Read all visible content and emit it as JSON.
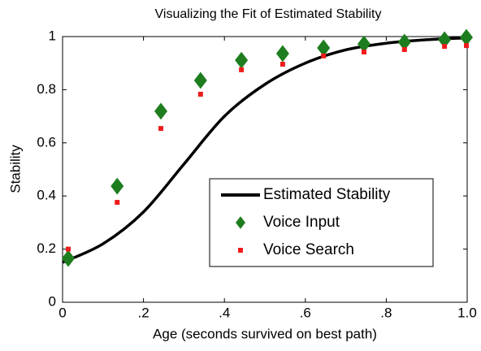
{
  "chart_data": {
    "type": "line",
    "title": "Visualizing the Fit of Estimated Stability",
    "xlabel": "Age (seconds survived on best path)",
    "ylabel": "Stability",
    "xlim": [
      0,
      1
    ],
    "ylim": [
      0,
      1
    ],
    "xticks": [
      0,
      {
        "value": 0.2,
        "label": ".2"
      },
      {
        "value": 0.4,
        "label": ".4"
      },
      {
        "value": 0.6,
        "label": ".6"
      },
      {
        "value": 0.8,
        "label": ".8"
      },
      {
        "value": 1,
        "label": "1.0"
      }
    ],
    "yticks": [
      0,
      0.2,
      0.4,
      0.6,
      0.8,
      1
    ],
    "legend": "lower right",
    "series": [
      {
        "name": "Estimated Stability",
        "color": "#000000",
        "marker": "line",
        "x": [
          0,
          0.1,
          0.2,
          0.3,
          0.4,
          0.5,
          0.6,
          0.7,
          0.8,
          0.9,
          1.0
        ],
        "values": [
          0.15,
          0.22,
          0.34,
          0.52,
          0.7,
          0.82,
          0.9,
          0.95,
          0.975,
          0.988,
          0.995
        ]
      },
      {
        "name": "Voice Input",
        "color": "#1e7d1e",
        "marker": "diamond",
        "x": [
          0.014,
          0.135,
          0.243,
          0.341,
          0.442,
          0.544,
          0.645,
          0.745,
          0.845,
          0.944,
          0.998
        ],
        "values": [
          0.165,
          0.437,
          0.719,
          0.835,
          0.911,
          0.936,
          0.957,
          0.972,
          0.979,
          0.988,
          0.997
        ]
      },
      {
        "name": "Voice Search",
        "color": "#ee1c1c",
        "marker": "square",
        "x": [
          0.014,
          0.135,
          0.243,
          0.341,
          0.442,
          0.544,
          0.645,
          0.745,
          0.845,
          0.944,
          0.998
        ],
        "values": [
          0.2,
          0.376,
          0.654,
          0.783,
          0.875,
          0.896,
          0.927,
          0.942,
          0.951,
          0.963,
          0.966
        ]
      }
    ]
  }
}
